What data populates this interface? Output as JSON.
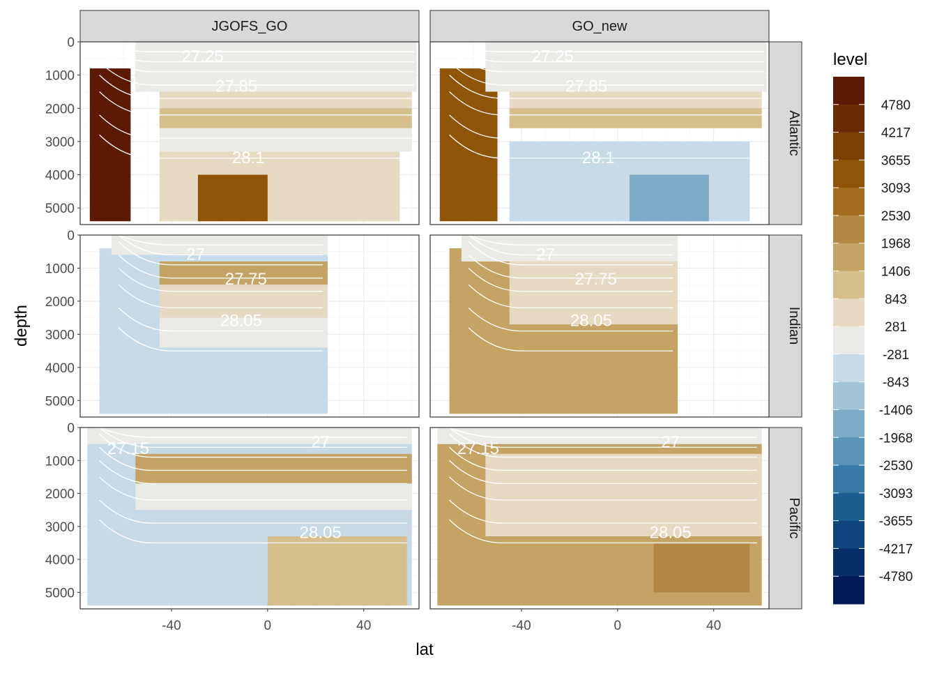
{
  "chart_data": {
    "type": "heatmap",
    "title": "",
    "xlabel": "lat",
    "ylabel": "depth",
    "facet_columns": [
      "JGOFS_GO",
      "GO_new"
    ],
    "facet_rows": [
      "Atlantic",
      "Indian",
      "Pacific"
    ],
    "x_ticks": [
      -40,
      0,
      40
    ],
    "x_tick_labels": [
      "-40",
      "0",
      "40"
    ],
    "y_ticks": [
      0,
      1000,
      2000,
      3000,
      4000,
      5000
    ],
    "y_tick_labels": [
      "0",
      "1000",
      "2000",
      "3000",
      "4000",
      "5000"
    ],
    "y_reversed": true,
    "xlim": [
      -78,
      63
    ],
    "ylim": [
      0,
      5500
    ],
    "grid": true,
    "legend": {
      "title": "level",
      "position": "right",
      "labels": [
        "4780",
        "4217",
        "3655",
        "3093",
        "2530",
        "1968",
        "1406",
        "843",
        "281",
        "-281",
        "-843",
        "-1406",
        "-1968",
        "-2530",
        "-3093",
        "-3655",
        "-4217",
        "-4780"
      ],
      "colors": [
        "#5c1a04",
        "#6e2a04",
        "#7d3d03",
        "#8f5408",
        "#a36d1f",
        "#b38845",
        "#c4a364",
        "#d6bf8d",
        "#e6dac2",
        "#eaeae6",
        "#c6dae8",
        "#a2c4d8",
        "#7eacc8",
        "#5a94b8",
        "#3679a5",
        "#1a5e91",
        "#0e457f",
        "#072e6b",
        "#021a57"
      ]
    },
    "contour_labels": [
      {
        "panel": "JGOFS_GO|Atlantic",
        "items": [
          {
            "text": "27.25",
            "lat": -27,
            "depth": 600
          },
          {
            "text": "27.85",
            "lat": -13,
            "depth": 1500
          },
          {
            "text": "28.1",
            "lat": -8,
            "depth": 3650
          }
        ]
      },
      {
        "panel": "GO_new|Atlantic",
        "items": [
          {
            "text": "27.25",
            "lat": -27,
            "depth": 600
          },
          {
            "text": "27.85",
            "lat": -13,
            "depth": 1500
          },
          {
            "text": "28.1",
            "lat": -8,
            "depth": 3650
          }
        ]
      },
      {
        "panel": "JGOFS_GO|Indian",
        "items": [
          {
            "text": "27",
            "lat": -30,
            "depth": 750
          },
          {
            "text": "27.75",
            "lat": -9,
            "depth": 1500
          },
          {
            "text": "28.05",
            "lat": -11,
            "depth": 2750
          }
        ]
      },
      {
        "panel": "GO_new|Indian",
        "items": [
          {
            "text": "27",
            "lat": -30,
            "depth": 750
          },
          {
            "text": "27.75",
            "lat": -9,
            "depth": 1500
          },
          {
            "text": "28.05",
            "lat": -11,
            "depth": 2750
          }
        ]
      },
      {
        "panel": "JGOFS_GO|Pacific",
        "items": [
          {
            "text": "27.15",
            "lat": -58,
            "depth": 800
          },
          {
            "text": "27",
            "lat": 22,
            "depth": 600
          },
          {
            "text": "28.05",
            "lat": 22,
            "depth": 3350
          }
        ]
      },
      {
        "panel": "GO_new|Pacific",
        "items": [
          {
            "text": "27.15",
            "lat": -58,
            "depth": 800
          },
          {
            "text": "27",
            "lat": 22,
            "depth": 600
          },
          {
            "text": "28.05",
            "lat": 22,
            "depth": 3350
          }
        ]
      }
    ],
    "panels": [
      {
        "col": "JGOFS_GO",
        "row": "Atlantic",
        "lat_range": [
          -78,
          63
        ],
        "regions": [
          {
            "level": "4780",
            "lat": [
              -74,
              -57
            ],
            "depth": [
              800,
              5400
            ]
          },
          {
            "level": "-281",
            "lat": [
              -55,
              62
            ],
            "depth": [
              0,
              1500
            ]
          },
          {
            "level": "281",
            "lat": [
              -45,
              60
            ],
            "depth": [
              1500,
              2000
            ]
          },
          {
            "level": "843",
            "lat": [
              -45,
              60
            ],
            "depth": [
              2000,
              2600
            ]
          },
          {
            "level": "-281",
            "lat": [
              -45,
              60
            ],
            "depth": [
              2600,
              3300
            ]
          },
          {
            "level": "281",
            "lat": [
              -45,
              55
            ],
            "depth": [
              3300,
              5400
            ]
          },
          {
            "level": "3093",
            "lat": [
              -29,
              0
            ],
            "depth": [
              4000,
              5400
            ]
          }
        ]
      },
      {
        "col": "GO_new",
        "row": "Atlantic",
        "lat_range": [
          -78,
          63
        ],
        "regions": [
          {
            "level": "3093",
            "lat": [
              -74,
              -50
            ],
            "depth": [
              800,
              5400
            ]
          },
          {
            "level": "-281",
            "lat": [
              -55,
              62
            ],
            "depth": [
              0,
              1500
            ]
          },
          {
            "level": "281",
            "lat": [
              -45,
              60
            ],
            "depth": [
              1500,
              2000
            ]
          },
          {
            "level": "843",
            "lat": [
              -45,
              60
            ],
            "depth": [
              2000,
              2600
            ]
          },
          {
            "level": "-843",
            "lat": [
              -45,
              55
            ],
            "depth": [
              3000,
              5400
            ]
          },
          {
            "level": "-1968",
            "lat": [
              5,
              38
            ],
            "depth": [
              4000,
              5400
            ]
          }
        ]
      },
      {
        "col": "JGOFS_GO",
        "row": "Indian",
        "lat_range": [
          -70,
          25
        ],
        "regions": [
          {
            "level": "-843",
            "lat": [
              -70,
              25
            ],
            "depth": [
              400,
              5400
            ]
          },
          {
            "level": "-281",
            "lat": [
              -65,
              25
            ],
            "depth": [
              0,
              600
            ]
          },
          {
            "level": "1406",
            "lat": [
              -45,
              25
            ],
            "depth": [
              800,
              1500
            ]
          },
          {
            "level": "281",
            "lat": [
              -45,
              25
            ],
            "depth": [
              1500,
              2500
            ]
          },
          {
            "level": "-281",
            "lat": [
              -45,
              25
            ],
            "depth": [
              2500,
              3400
            ]
          }
        ]
      },
      {
        "col": "GO_new",
        "row": "Indian",
        "lat_range": [
          -70,
          25
        ],
        "regions": [
          {
            "level": "1406",
            "lat": [
              -70,
              25
            ],
            "depth": [
              400,
              5400
            ]
          },
          {
            "level": "281",
            "lat": [
              -45,
              25
            ],
            "depth": [
              800,
              2700
            ]
          },
          {
            "level": "-281",
            "lat": [
              -65,
              25
            ],
            "depth": [
              0,
              800
            ]
          }
        ]
      },
      {
        "col": "JGOFS_GO",
        "row": "Pacific",
        "lat_range": [
          -78,
          60
        ],
        "regions": [
          {
            "level": "-843",
            "lat": [
              -75,
              60
            ],
            "depth": [
              500,
              5400
            ]
          },
          {
            "level": "-281",
            "lat": [
              -75,
              60
            ],
            "depth": [
              0,
              500
            ]
          },
          {
            "level": "1406",
            "lat": [
              -55,
              60
            ],
            "depth": [
              800,
              1700
            ]
          },
          {
            "level": "-281",
            "lat": [
              -55,
              60
            ],
            "depth": [
              1700,
              2500
            ]
          },
          {
            "level": "843",
            "lat": [
              0,
              58
            ],
            "depth": [
              3300,
              5400
            ]
          }
        ]
      },
      {
        "col": "GO_new",
        "row": "Pacific",
        "lat_range": [
          -78,
          60
        ],
        "regions": [
          {
            "level": "1406",
            "lat": [
              -75,
              60
            ],
            "depth": [
              500,
              5400
            ]
          },
          {
            "level": "-281",
            "lat": [
              -75,
              60
            ],
            "depth": [
              0,
              500
            ]
          },
          {
            "level": "281",
            "lat": [
              -55,
              60
            ],
            "depth": [
              800,
              3300
            ]
          },
          {
            "level": "1968",
            "lat": [
              15,
              55
            ],
            "depth": [
              3500,
              5000
            ]
          }
        ]
      }
    ]
  }
}
